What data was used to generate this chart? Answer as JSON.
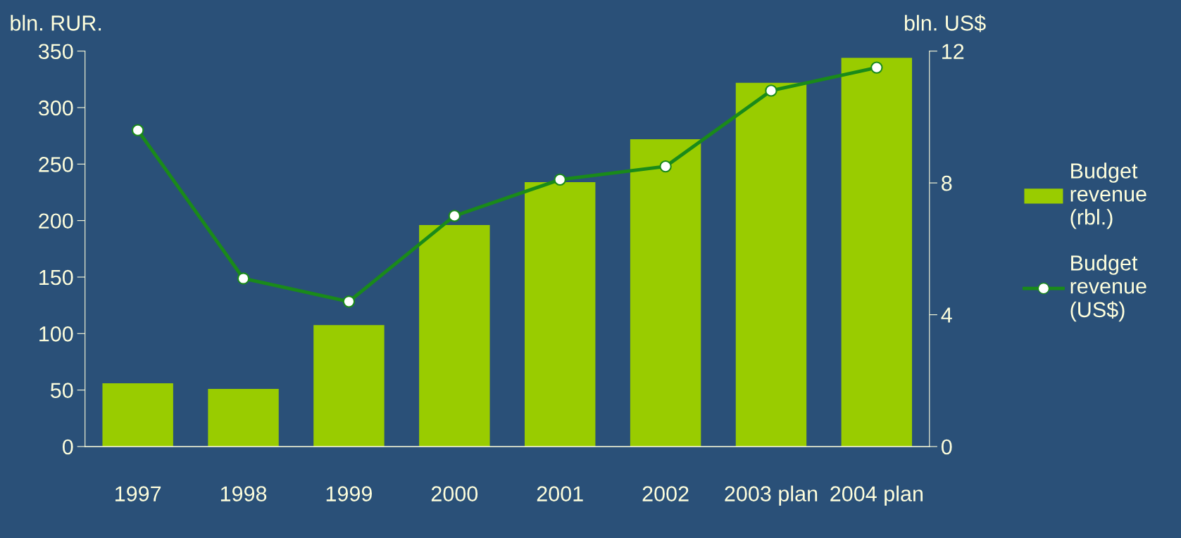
{
  "chart_data": {
    "type": "bar",
    "ylabel": "bln. RUR.",
    "y2label": "bln. US$",
    "categories": [
      "1997",
      "1998",
      "1999",
      "2000",
      "2001",
      "2002",
      "2003 plan",
      "2004 plan"
    ],
    "series": [
      {
        "name": "Budget\nrevenue\n(rbl.)",
        "color": "#99cc00",
        "values": [
          56,
          51,
          107.5,
          196,
          234,
          272,
          322,
          344
        ]
      },
      {
        "name": "Budget\nrevenue\n(US$)",
        "type": "line",
        "axis": "y2",
        "color": "#1a8a1a",
        "marker": "circle",
        "values": [
          9.6,
          5.1,
          4.4,
          7.0,
          8.1,
          8.5,
          10.8,
          11.5
        ]
      }
    ],
    "ylim": [
      0,
      350
    ],
    "yticks": [
      0,
      50,
      100,
      150,
      200,
      250,
      300,
      350
    ],
    "y2lim": [
      0,
      12
    ],
    "y2ticks": [
      0,
      4,
      8,
      12
    ],
    "legend": "right",
    "grid": false
  }
}
